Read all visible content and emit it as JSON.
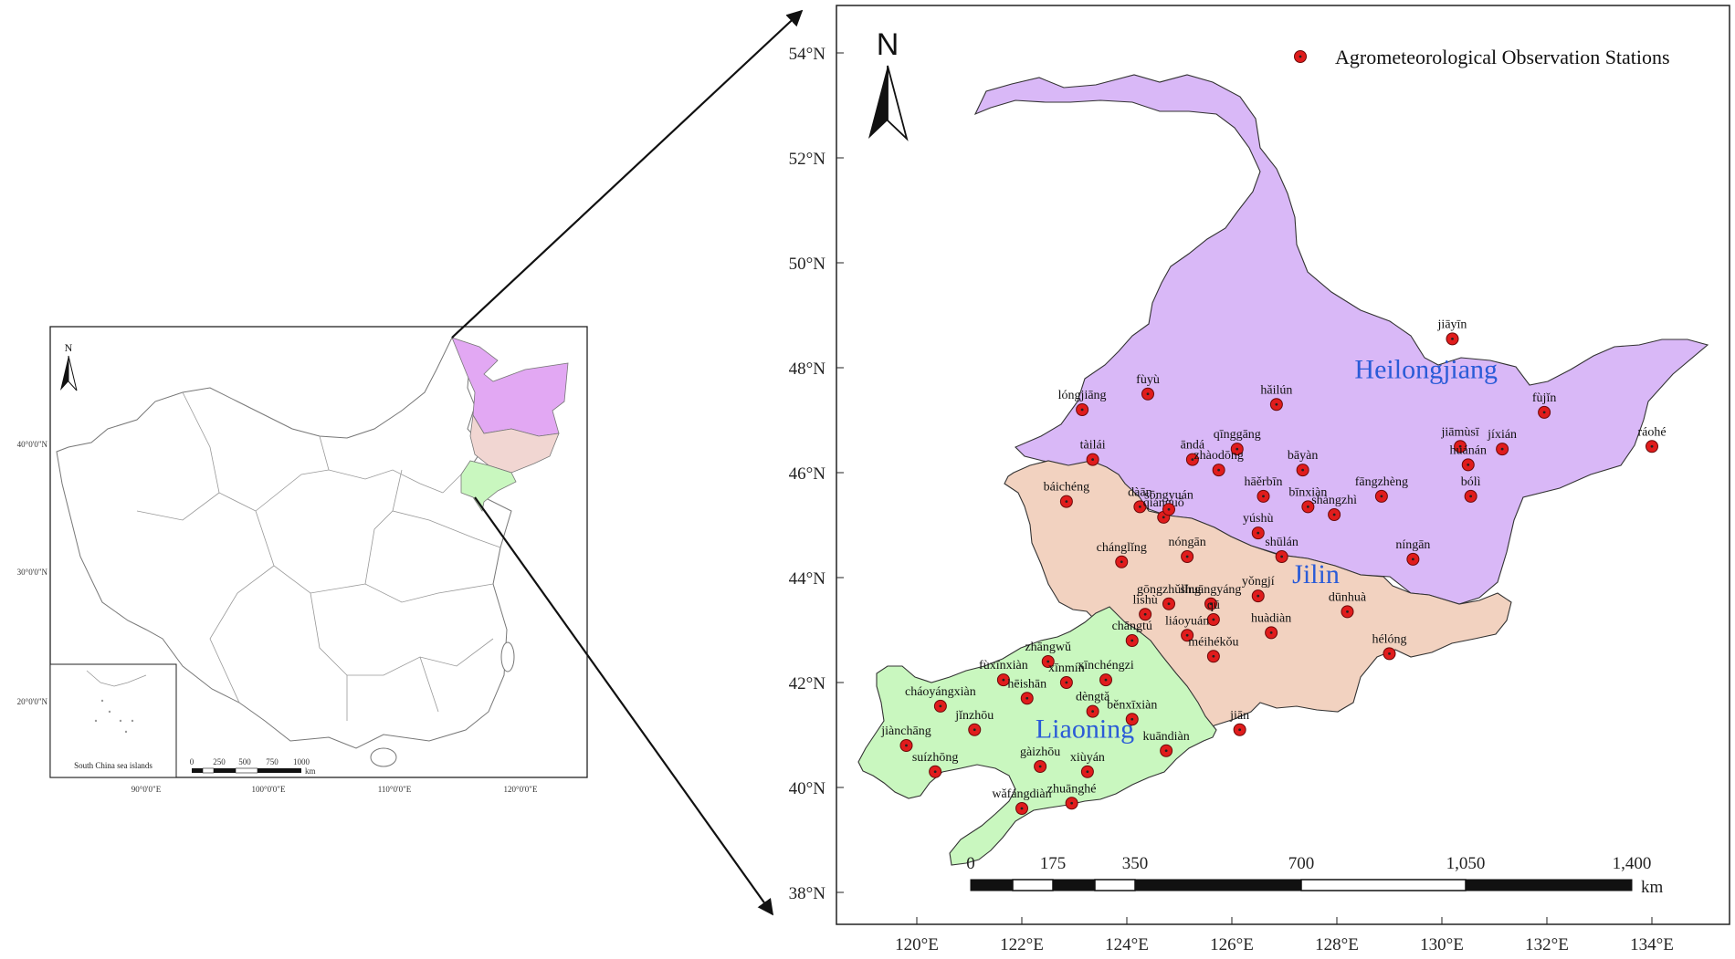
{
  "overview_map": {
    "north_label": "N",
    "lat_ticks": [
      "40°0'0\"N",
      "30°0'0\"N",
      "20°0'0\"N"
    ],
    "lon_ticks": [
      "90°0'0\"E",
      "100°0'0\"E",
      "110°0'0\"E",
      "120°0'0\"E"
    ],
    "inset_label": "South China sea islands",
    "scale_labels": [
      "0",
      "250",
      "500",
      "750",
      "1000"
    ],
    "scale_unit": "km"
  },
  "main_map": {
    "north_label": "N",
    "legend_label": "Agrometeorological Observation Stations",
    "lat_ticks": [
      "54°N",
      "52°N",
      "50°N",
      "48°N",
      "46°N",
      "44°N",
      "42°N",
      "40°N",
      "38°N"
    ],
    "lon_ticks": [
      "120°E",
      "122°E",
      "124°E",
      "126°E",
      "128°E",
      "130°E",
      "132°E",
      "134°E"
    ],
    "scale_labels": [
      "0",
      "175",
      "350",
      "700",
      "1,050",
      "1,400"
    ],
    "scale_unit": "km",
    "colors": {
      "heilongjiang": "#d9b8f7",
      "jilin": "#f2d2c0",
      "liaoning": "#c9f7bf",
      "station": "#e01c1c",
      "label": "#2a5bd7"
    },
    "provinces": [
      {
        "name": "Heilongjiang",
        "lon": 129.7,
        "lat": 47.8
      },
      {
        "name": "Jilin",
        "lon": 127.6,
        "lat": 43.9
      },
      {
        "name": "Liaoning",
        "lon": 123.2,
        "lat": 40.95
      }
    ],
    "stations": [
      {
        "name": "jiāyīn",
        "lon": 130.2,
        "lat": 48.55
      },
      {
        "name": "fùyù",
        "lon": 124.4,
        "lat": 47.5
      },
      {
        "name": "hǎilún",
        "lon": 126.85,
        "lat": 47.3
      },
      {
        "name": "lóngjiāng",
        "lon": 123.15,
        "lat": 47.2
      },
      {
        "name": "fùjǐn",
        "lon": 131.95,
        "lat": 47.15
      },
      {
        "name": "ráohé",
        "lon": 134.0,
        "lat": 46.5
      },
      {
        "name": "tàilái",
        "lon": 123.35,
        "lat": 46.25
      },
      {
        "name": "āndá",
        "lon": 125.25,
        "lat": 46.25
      },
      {
        "name": "qīnggāng",
        "lon": 126.1,
        "lat": 46.45
      },
      {
        "name": "zhàodōng",
        "lon": 125.75,
        "lat": 46.05
      },
      {
        "name": "bāyàn",
        "lon": 127.35,
        "lat": 46.05
      },
      {
        "name": "jiāmùsī",
        "lon": 130.35,
        "lat": 46.5
      },
      {
        "name": "huánán",
        "lon": 130.5,
        "lat": 46.15
      },
      {
        "name": "jíxián",
        "lon": 131.15,
        "lat": 46.45
      },
      {
        "name": "báichéng",
        "lon": 122.85,
        "lat": 45.45
      },
      {
        "name": "dàān",
        "lon": 124.25,
        "lat": 45.35
      },
      {
        "name": "qiánguō",
        "lon": 124.7,
        "lat": 45.15
      },
      {
        "name": "hāěrbīn",
        "lon": 126.6,
        "lat": 45.55
      },
      {
        "name": "bīnxiàn",
        "lon": 127.45,
        "lat": 45.35
      },
      {
        "name": "fāngzhèng",
        "lon": 128.85,
        "lat": 45.55
      },
      {
        "name": "shàngzhì",
        "lon": 127.95,
        "lat": 45.2
      },
      {
        "name": "bólì",
        "lon": 130.55,
        "lat": 45.55
      },
      {
        "name": "sōngyuán",
        "lon": 124.8,
        "lat": 45.3
      },
      {
        "name": "yúshù",
        "lon": 126.5,
        "lat": 44.85
      },
      {
        "name": "shūlán",
        "lon": 126.95,
        "lat": 44.4
      },
      {
        "name": "chánglǐng",
        "lon": 123.9,
        "lat": 44.3
      },
      {
        "name": "nóngān",
        "lon": 125.15,
        "lat": 44.4
      },
      {
        "name": "níngān",
        "lon": 129.45,
        "lat": 44.35
      },
      {
        "name": "gōngzhǔlǐng",
        "lon": 124.8,
        "lat": 43.5
      },
      {
        "name": "lìshù",
        "lon": 124.35,
        "lat": 43.3
      },
      {
        "name": "yǒngjí",
        "lon": 126.5,
        "lat": 43.65
      },
      {
        "name": "dūnhuà",
        "lon": 128.2,
        "lat": 43.35
      },
      {
        "name": "shuāngyáng",
        "lon": 125.6,
        "lat": 43.5
      },
      {
        "name": "qū",
        "lon": 125.65,
        "lat": 43.2
      },
      {
        "name": "chāngtú",
        "lon": 124.1,
        "lat": 42.8
      },
      {
        "name": "liáoyuán",
        "lon": 125.15,
        "lat": 42.9
      },
      {
        "name": "huàdiàn",
        "lon": 126.75,
        "lat": 42.95
      },
      {
        "name": "fùxīnxiàn",
        "lon": 121.65,
        "lat": 42.05
      },
      {
        "name": "zhāngwǔ",
        "lon": 122.5,
        "lat": 42.4
      },
      {
        "name": "xīnchéngzi",
        "lon": 123.6,
        "lat": 42.05
      },
      {
        "name": "méihékǒu",
        "lon": 125.65,
        "lat": 42.5
      },
      {
        "name": "hélóng",
        "lon": 129.0,
        "lat": 42.55
      },
      {
        "name": "hēishān",
        "lon": 122.1,
        "lat": 41.7
      },
      {
        "name": "xīnmín",
        "lon": 122.85,
        "lat": 42.0
      },
      {
        "name": "dèngtǎ",
        "lon": 123.35,
        "lat": 41.45
      },
      {
        "name": "běnxīxiàn",
        "lon": 124.1,
        "lat": 41.3
      },
      {
        "name": "jiān",
        "lon": 126.15,
        "lat": 41.1
      },
      {
        "name": "cháoyángxiàn",
        "lon": 120.45,
        "lat": 41.55
      },
      {
        "name": "jǐnzhōu",
        "lon": 121.1,
        "lat": 41.1
      },
      {
        "name": "jiànchāng",
        "lon": 119.8,
        "lat": 40.8
      },
      {
        "name": "suízhōng",
        "lon": 120.35,
        "lat": 40.3
      },
      {
        "name": "gàizhōu",
        "lon": 122.35,
        "lat": 40.4
      },
      {
        "name": "xiùyán",
        "lon": 123.25,
        "lat": 40.3
      },
      {
        "name": "kuāndiàn",
        "lon": 124.75,
        "lat": 40.7
      },
      {
        "name": "zhuānghé",
        "lon": 122.95,
        "lat": 39.7
      },
      {
        "name": "wǎfángdiàn",
        "lon": 122.0,
        "lat": 39.6
      }
    ]
  }
}
